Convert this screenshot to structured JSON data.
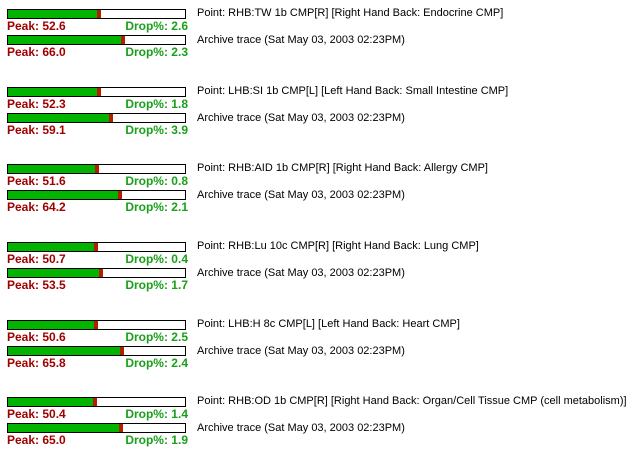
{
  "measurements": [
    {
      "point": "Point: RHB:TW 1b CMP[R]  [Right Hand Back: Endocrine CMP]",
      "archive": "Archive trace (Sat May 03, 2003 02:23PM)",
      "current": {
        "peak_label": "Peak: 52.6",
        "drop_label": "Drop%: 2.6",
        "peak": 52.6,
        "drop": 2.6
      },
      "archived": {
        "peak_label": "Peak: 66.0",
        "drop_label": "Drop%: 2.3",
        "peak": 66.0,
        "drop": 2.3
      }
    },
    {
      "point": "Point: LHB:SI 1b CMP[L]  [Left Hand Back: Small Intestine CMP]",
      "archive": "Archive trace (Sat May 03, 2003 02:23PM)",
      "current": {
        "peak_label": "Peak: 52.3",
        "drop_label": "Drop%: 1.8",
        "peak": 52.3,
        "drop": 1.8
      },
      "archived": {
        "peak_label": "Peak: 59.1",
        "drop_label": "Drop%: 3.9",
        "peak": 59.1,
        "drop": 3.9
      }
    },
    {
      "point": "Point: RHB:AID 1b CMP[R]  [Right Hand Back: Allergy CMP]",
      "archive": "Archive trace (Sat May 03, 2003 02:23PM)",
      "current": {
        "peak_label": "Peak: 51.6",
        "drop_label": "Drop%: 0.8",
        "peak": 51.6,
        "drop": 0.8
      },
      "archived": {
        "peak_label": "Peak: 64.2",
        "drop_label": "Drop%: 2.1",
        "peak": 64.2,
        "drop": 2.1
      }
    },
    {
      "point": "Point: RHB:Lu 10c CMP[R]  [Right Hand Back: Lung CMP]",
      "archive": "Archive trace (Sat May 03, 2003 02:23PM)",
      "current": {
        "peak_label": "Peak: 50.7",
        "drop_label": "Drop%: 0.4",
        "peak": 50.7,
        "drop": 0.4
      },
      "archived": {
        "peak_label": "Peak: 53.5",
        "drop_label": "Drop%: 1.7",
        "peak": 53.5,
        "drop": 1.7
      }
    },
    {
      "point": "Point: LHB:H 8c CMP[L]  [Left Hand Back: Heart CMP]",
      "archive": "Archive trace (Sat May 03, 2003 02:23PM)",
      "current": {
        "peak_label": "Peak: 50.6",
        "drop_label": "Drop%: 2.5",
        "peak": 50.6,
        "drop": 2.5
      },
      "archived": {
        "peak_label": "Peak: 65.8",
        "drop_label": "Drop%: 2.4",
        "peak": 65.8,
        "drop": 2.4
      }
    },
    {
      "point": "Point: RHB:OD 1b CMP[R]  [Right Hand Back: Organ/Cell Tissue CMP (cell metabolism)]",
      "archive": "Archive trace (Sat May 03, 2003 02:23PM)",
      "current": {
        "peak_label": "Peak: 50.4",
        "drop_label": "Drop%: 1.4",
        "peak": 50.4,
        "drop": 1.4
      },
      "archived": {
        "peak_label": "Peak: 65.0",
        "drop_label": "Drop%: 1.9",
        "peak": 65.0,
        "drop": 1.9
      }
    }
  ],
  "colors": {
    "bar_fill": "#00b400",
    "drop_marker": "#b41e00",
    "peak_text": "#a00000",
    "drop_text": "#18a018"
  }
}
